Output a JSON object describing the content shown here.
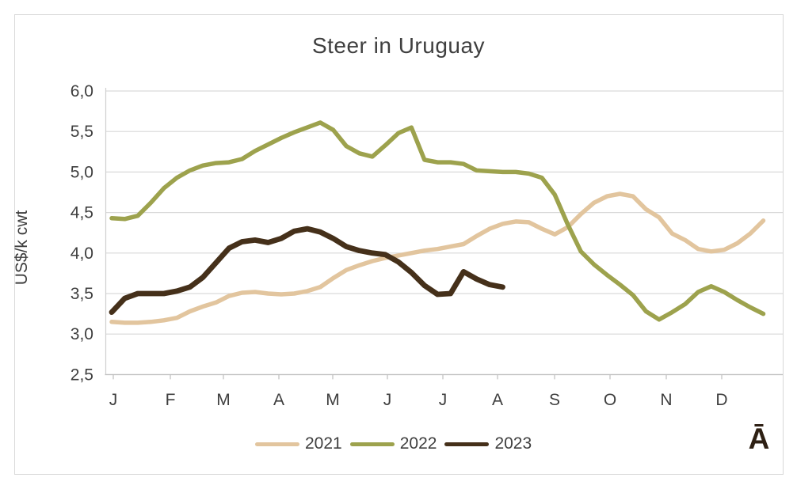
{
  "title": "Steer in Uruguay",
  "y_axis": {
    "label": "US$/k cwt",
    "ticks": [
      "6,0",
      "5,5",
      "5,0",
      "4,5",
      "4,0",
      "3,5",
      "3,0",
      "2,5"
    ]
  },
  "x_axis": {
    "ticks": [
      "J",
      "F",
      "M",
      "A",
      "M",
      "J",
      "J",
      "A",
      "S",
      "O",
      "N",
      "D"
    ]
  },
  "legend": [
    {
      "label": "2021",
      "color": "#e2c59e"
    },
    {
      "label": "2022",
      "color": "#9da24d"
    },
    {
      "label": "2023",
      "color": "#45301a"
    }
  ],
  "watermark": "Ā",
  "colors": {
    "gridline": "#d9d9d9",
    "axis": "#bfbfbf",
    "text": "#3f3f3f"
  },
  "chart_data": {
    "type": "line",
    "title": "Steer in Uruguay",
    "xlabel": "",
    "ylabel": "US$/k cwt",
    "x_unit": "weekly points, Jan-Dec",
    "categories": [
      "J",
      "F",
      "M",
      "A",
      "M",
      "J",
      "J",
      "A",
      "S",
      "O",
      "N",
      "D"
    ],
    "ylim": [
      2.5,
      6.0
    ],
    "y_tick_step": 0.5,
    "grid": "horizontal",
    "legend_position": "bottom",
    "series": [
      {
        "name": "2021",
        "color": "#e2c59e",
        "values": [
          3.15,
          3.14,
          3.14,
          3.15,
          3.17,
          3.2,
          3.28,
          3.34,
          3.39,
          3.47,
          3.51,
          3.52,
          3.5,
          3.49,
          3.5,
          3.53,
          3.58,
          3.69,
          3.79,
          3.85,
          3.9,
          3.94,
          3.97,
          4.0,
          4.03,
          4.05,
          4.08,
          4.11,
          4.21,
          4.3,
          4.36,
          4.39,
          4.38,
          4.3,
          4.23,
          4.32,
          4.48,
          4.62,
          4.7,
          4.73,
          4.7,
          4.54,
          4.44,
          4.24,
          4.16,
          4.05,
          4.02,
          4.04,
          4.12,
          4.24,
          4.4
        ]
      },
      {
        "name": "2022",
        "color": "#9da24d",
        "values": [
          4.43,
          4.42,
          4.46,
          4.62,
          4.8,
          4.93,
          5.02,
          5.08,
          5.11,
          5.12,
          5.16,
          5.26,
          5.34,
          5.42,
          5.49,
          5.55,
          5.61,
          5.52,
          5.32,
          5.23,
          5.19,
          5.33,
          5.48,
          5.55,
          5.15,
          5.12,
          5.12,
          5.1,
          5.02,
          5.01,
          5.0,
          5.0,
          4.98,
          4.93,
          4.72,
          4.35,
          4.02,
          3.86,
          3.73,
          3.61,
          3.48,
          3.28,
          3.18,
          3.27,
          3.37,
          3.52,
          3.59,
          3.52,
          3.42,
          3.33,
          3.25
        ]
      },
      {
        "name": "2023",
        "color": "#45301a",
        "values": [
          3.27,
          3.44,
          3.5,
          3.5,
          3.5,
          3.53,
          3.58,
          3.7,
          3.88,
          4.06,
          4.14,
          4.16,
          4.13,
          4.18,
          4.27,
          4.3,
          4.26,
          4.18,
          4.08,
          4.03,
          4.0,
          3.98,
          3.89,
          3.76,
          3.6,
          3.49,
          3.5,
          3.77,
          3.68,
          3.61,
          3.58
        ]
      }
    ]
  }
}
